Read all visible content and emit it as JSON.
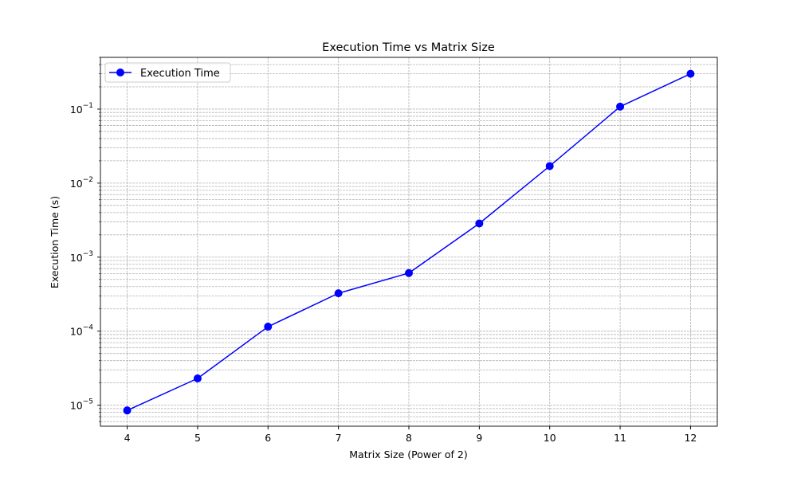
{
  "chart_data": {
    "type": "line",
    "title": "Execution Time vs Matrix Size",
    "xlabel": "Matrix Size (Power of 2)",
    "ylabel": "Execution Time (s)",
    "yscale": "log",
    "xlim": [
      3.62,
      12.38
    ],
    "ylim": [
      5.2e-06,
      0.5
    ],
    "x": [
      4,
      5,
      6,
      7,
      8,
      9,
      10,
      11,
      12
    ],
    "x_tick_labels": [
      "4",
      "5",
      "6",
      "7",
      "8",
      "9",
      "10",
      "11",
      "12"
    ],
    "y_tick_exponents": [
      "-5",
      "-4",
      "-3",
      "-2",
      "-1"
    ],
    "y_tick_base": "10",
    "y_tick_sign": "−",
    "grid": true,
    "legend_position": "upper-left",
    "series": [
      {
        "name": "Execution Time",
        "color": "#0000ff",
        "marker": "circle",
        "values": [
          8.5e-06,
          2.3e-05,
          0.000115,
          0.000325,
          0.00061,
          0.00285,
          0.017,
          0.108,
          0.3
        ]
      }
    ]
  }
}
